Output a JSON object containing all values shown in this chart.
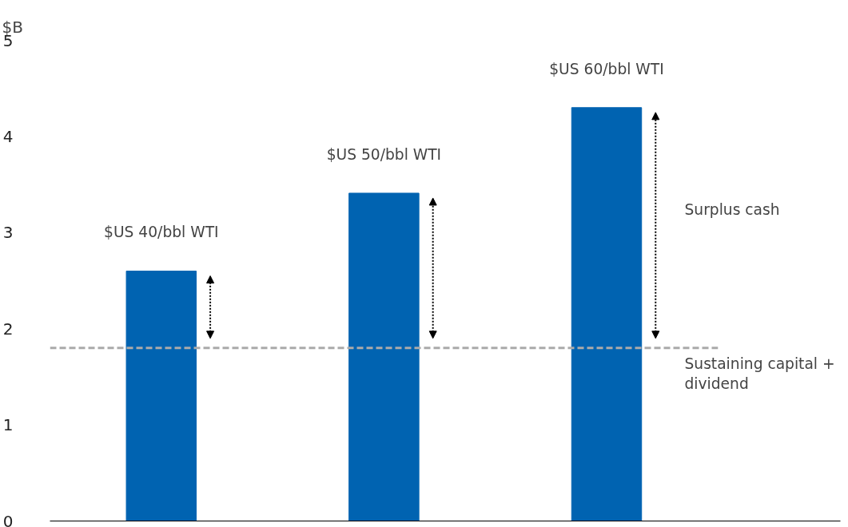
{
  "chart_data": {
    "type": "bar",
    "ylabel": "$B",
    "categories": [
      "$US 40/bbl WTI",
      "$US 50/bbl WTI",
      "$US 60/bbl WTI"
    ],
    "values": [
      2.6,
      3.41,
      4.3
    ],
    "color": "#0063b1",
    "ylim": [
      0,
      5
    ],
    "yticks": [
      0,
      1,
      2,
      3,
      4,
      5
    ],
    "grid": false,
    "ref_lines": [
      {
        "axis": "y",
        "value": 1.8,
        "label": "Sustaining capital + dividend",
        "color": "#aaaaaa",
        "line_style": "dashed"
      }
    ],
    "annotations": [
      "Surplus cash"
    ]
  }
}
